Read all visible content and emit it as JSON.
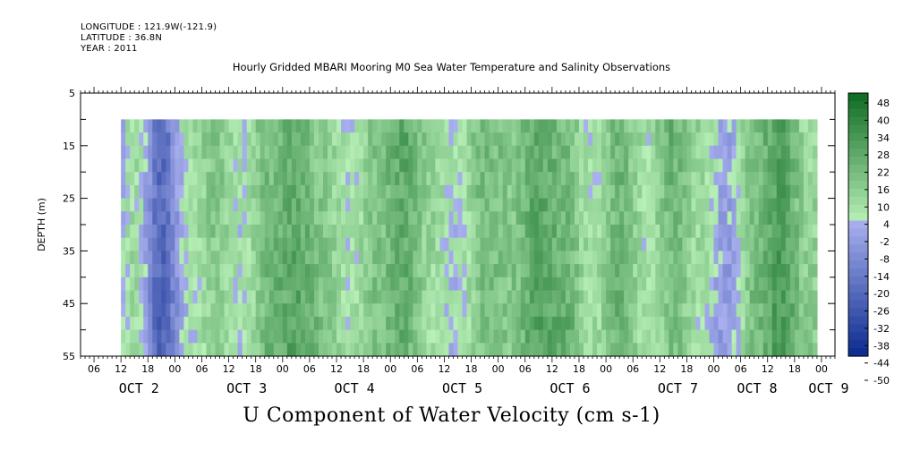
{
  "header": {
    "longitude": "LONGITUDE : 121.9W(-121.9)",
    "latitude": "LATITUDE : 36.8N",
    "year": "YEAR : 2011"
  },
  "colors": {
    "negative_strong": "#0a2a8e",
    "negative_light": "#a9b0ee",
    "positive_light": "#b8f0b8",
    "positive_strong": "#0e6a22",
    "missing": "#ffffff"
  },
  "chart_data": {
    "type": "heatmap",
    "title": "Hourly Gridded MBARI Mooring M0 Sea Water Temperature and Salinity Observations",
    "subtitle": "U Component of Water Velocity (cm s-1)",
    "xlabel": "",
    "ylabel": "DEPTH (m)",
    "y_axis": {
      "range": [
        5,
        55
      ],
      "inverted": true,
      "ticks": [
        5,
        15,
        25,
        35,
        45,
        55
      ]
    },
    "x_axis": {
      "range_hours": [
        0,
        168
      ],
      "hour_ticks": [
        "06",
        "12",
        "18",
        "00",
        "06",
        "12",
        "18",
        "00",
        "06",
        "12",
        "18",
        "00",
        "06",
        "12",
        "18",
        "00",
        "06",
        "12",
        "18",
        "00",
        "06",
        "12",
        "18",
        "00",
        "06",
        "12",
        "18",
        "00",
        "06",
        "12",
        "18",
        "00"
      ],
      "day_labels": [
        "OCT 2",
        "OCT 3",
        "OCT 4",
        "OCT 5",
        "OCT 6",
        "OCT 7",
        "OCT 8",
        "OCT 9"
      ]
    },
    "data_extent": {
      "depth": [
        10,
        55
      ],
      "start": "OCT 2 ~09:00",
      "end": "OCT 9 ~02:00"
    },
    "colorbar": {
      "labels": [
        "48",
        "40",
        "34",
        "28",
        "22",
        "16",
        "10",
        "4",
        "-2",
        "-8",
        "-14",
        "-20",
        "-26",
        "-32",
        "-38",
        "-44",
        "-50"
      ],
      "range": [
        -50,
        48
      ]
    },
    "pattern_columns": [
      {
        "t": 0,
        "v": -20
      },
      {
        "t": 6,
        "v": -14
      },
      {
        "t": 12,
        "v": 8
      },
      {
        "t": 18,
        "v": -24
      },
      {
        "t": 24,
        "v": 6
      },
      {
        "t": 30,
        "v": 16
      },
      {
        "t": 36,
        "v": 4
      },
      {
        "t": 42,
        "v": 18
      },
      {
        "t": 48,
        "v": 22
      },
      {
        "t": 54,
        "v": 12
      },
      {
        "t": 60,
        "v": 2
      },
      {
        "t": 66,
        "v": 16
      },
      {
        "t": 72,
        "v": 26
      },
      {
        "t": 78,
        "v": 12
      },
      {
        "t": 84,
        "v": 4
      },
      {
        "t": 90,
        "v": 20
      },
      {
        "t": 96,
        "v": 14
      },
      {
        "t": 102,
        "v": 24
      },
      {
        "t": 108,
        "v": 18
      },
      {
        "t": 114,
        "v": 2
      },
      {
        "t": 120,
        "v": 20
      },
      {
        "t": 126,
        "v": 6
      },
      {
        "t": 132,
        "v": 22
      },
      {
        "t": 138,
        "v": 10
      },
      {
        "t": 144,
        "v": -4
      },
      {
        "t": 150,
        "v": 18
      },
      {
        "t": 156,
        "v": 28
      },
      {
        "t": 162,
        "v": 8
      },
      {
        "t": 168,
        "v": 4
      }
    ]
  }
}
